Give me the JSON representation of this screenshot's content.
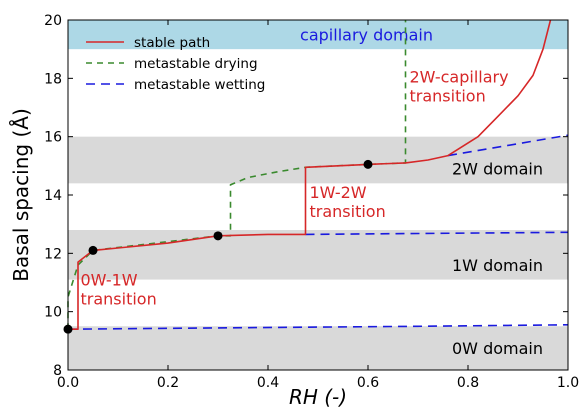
{
  "chart_data": {
    "type": "line",
    "title": "",
    "xlabel": "RH (-)",
    "ylabel": "Basal spacing (Å)",
    "xlim": [
      0.0,
      1.0
    ],
    "ylim": [
      8,
      20
    ],
    "x_ticks": [
      "0.0",
      "0.2",
      "0.4",
      "0.6",
      "0.8",
      "1.0"
    ],
    "x_tick_values": [
      0.0,
      0.2,
      0.4,
      0.6,
      0.8,
      1.0
    ],
    "y_ticks": [
      "8",
      "10",
      "12",
      "14",
      "16",
      "18",
      "20"
    ],
    "y_tick_values": [
      8,
      10,
      12,
      14,
      16,
      18,
      20
    ],
    "grid": false,
    "legend_position": "top-left",
    "bands": [
      {
        "name": "0W",
        "label": "0W domain",
        "y": [
          8.0,
          9.5
        ],
        "color": "#d9d9d9",
        "label_color": "#000000",
        "label_at": [
          0.95,
          8.55
        ]
      },
      {
        "name": "1W",
        "label": "1W domain",
        "y": [
          11.1,
          12.8
        ],
        "color": "#d9d9d9",
        "label_color": "#000000",
        "label_at": [
          0.95,
          11.4
        ]
      },
      {
        "name": "2W",
        "label": "2W domain",
        "y": [
          14.4,
          16.0
        ],
        "color": "#d9d9d9",
        "label_color": "#000000",
        "label_at": [
          0.95,
          14.7
        ]
      },
      {
        "name": "capillary",
        "label": "capillary domain",
        "y": [
          19.0,
          20.0
        ],
        "color": "#add8e6",
        "label_color": "#1a1adf",
        "label_at": [
          0.73,
          19.3
        ]
      }
    ],
    "series": [
      {
        "name": "stable path",
        "color": "#d62728",
        "dash": "solid",
        "points": [
          [
            0.0,
            9.4
          ],
          [
            0.02,
            9.4
          ],
          [
            0.02,
            11.7
          ],
          [
            0.05,
            12.1
          ],
          [
            0.2,
            12.35
          ],
          [
            0.3,
            12.6
          ],
          [
            0.4,
            12.65
          ],
          [
            0.475,
            12.65
          ],
          [
            0.475,
            14.95
          ],
          [
            0.6,
            15.05
          ],
          [
            0.675,
            15.1
          ],
          [
            0.72,
            15.2
          ],
          [
            0.76,
            15.35
          ],
          [
            0.82,
            16.0
          ],
          [
            0.86,
            16.7
          ],
          [
            0.9,
            17.4
          ],
          [
            0.93,
            18.1
          ],
          [
            0.95,
            19.0
          ],
          [
            0.965,
            20.0
          ]
        ]
      },
      {
        "name": "metastable drying",
        "color": "#3a8a2e",
        "dash": "6,5",
        "points": [
          [
            0.0,
            9.4
          ],
          [
            0.0,
            10.5
          ],
          [
            0.02,
            11.6
          ],
          [
            0.05,
            12.1
          ],
          [
            0.3,
            12.6
          ],
          [
            0.325,
            12.6
          ],
          [
            0.325,
            14.35
          ],
          [
            0.36,
            14.6
          ],
          [
            0.42,
            14.8
          ],
          [
            0.475,
            14.95
          ],
          [
            0.6,
            15.05
          ],
          [
            0.675,
            15.1
          ],
          [
            0.675,
            20.0
          ]
        ]
      },
      {
        "name": "metastable wetting",
        "color": "#1a1adf",
        "dash": "9,6",
        "points": [
          [
            0.0,
            9.4
          ],
          [
            0.35,
            9.45
          ],
          [
            0.7,
            9.5
          ],
          [
            1.0,
            9.55
          ],
          [
            1.0,
            9.55
          ]
        ],
        "extra_segments": [
          [
            [
              0.475,
              12.65
            ],
            [
              1.0,
              12.72
            ]
          ],
          [
            [
              0.76,
              15.35
            ],
            [
              1.0,
              16.05
            ]
          ]
        ]
      }
    ],
    "markers": {
      "color": "#000000",
      "points": [
        [
          0.0,
          9.4
        ],
        [
          0.05,
          12.1
        ],
        [
          0.3,
          12.6
        ],
        [
          0.6,
          15.05
        ]
      ]
    },
    "annotations": [
      {
        "lines": [
          "0W-1W",
          "transition"
        ],
        "at": [
          0.025,
          10.9
        ],
        "color": "#d62728"
      },
      {
        "lines": [
          "1W-2W",
          "transition"
        ],
        "at": [
          0.483,
          13.9
        ],
        "color": "#d62728"
      },
      {
        "lines": [
          "2W-capillary",
          "transition"
        ],
        "at": [
          0.683,
          17.85
        ],
        "color": "#d62728"
      }
    ]
  }
}
